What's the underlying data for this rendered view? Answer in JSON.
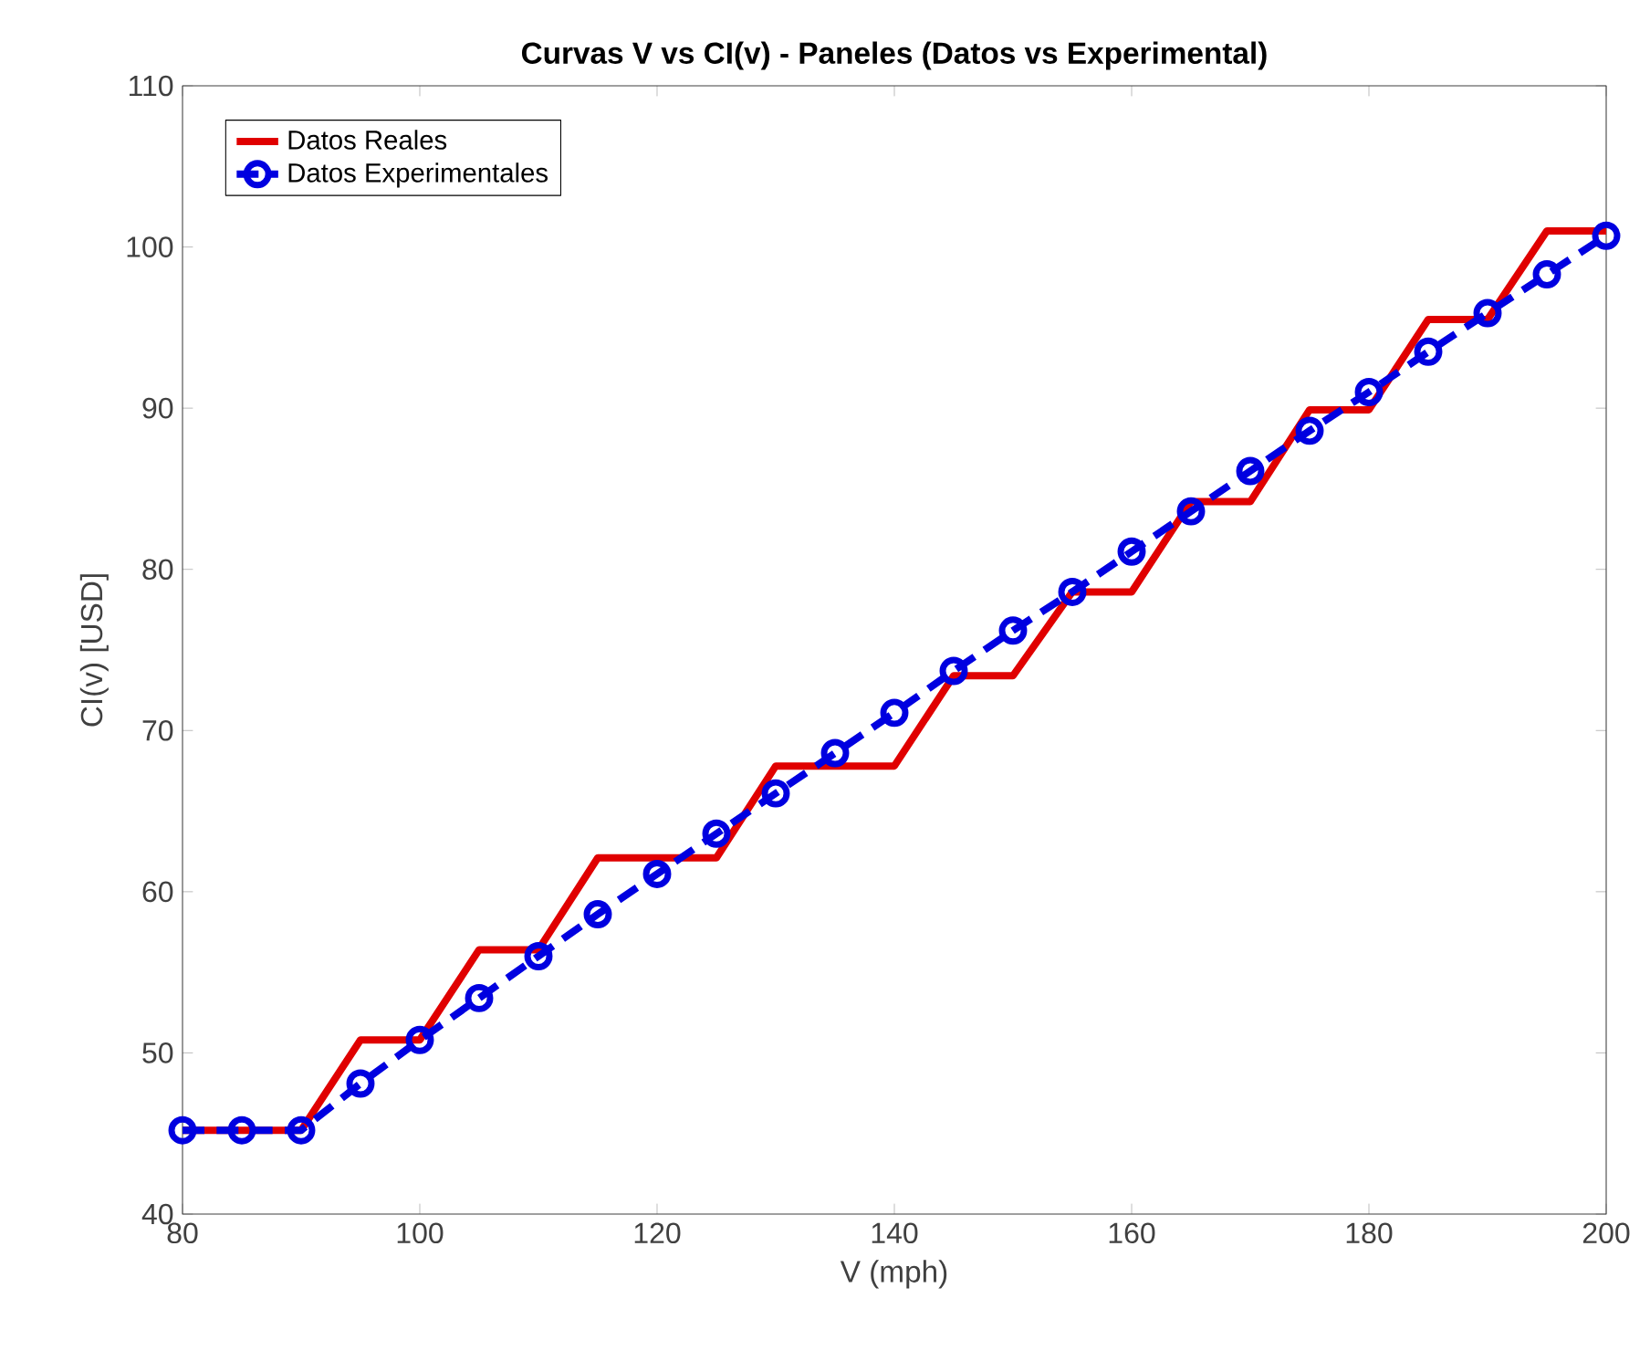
{
  "chart_data": {
    "type": "line",
    "title": "Curvas V vs CI(v) - Paneles (Datos vs Experimental)",
    "xlabel": "V (mph)",
    "ylabel": "CI(v) [USD]",
    "x": [
      80,
      85,
      90,
      95,
      100,
      105,
      110,
      115,
      120,
      125,
      130,
      135,
      140,
      145,
      150,
      155,
      160,
      165,
      170,
      175,
      180,
      185,
      190,
      195,
      200
    ],
    "series": [
      {
        "name": "Datos Reales",
        "color": "#e00000",
        "marker": "none",
        "line_style": "solid",
        "values": [
          45.2,
          45.2,
          45.2,
          50.8,
          50.8,
          56.4,
          56.4,
          62.1,
          62.1,
          62.1,
          67.8,
          67.8,
          67.8,
          73.4,
          73.4,
          78.6,
          78.6,
          84.2,
          84.2,
          89.9,
          89.9,
          95.5,
          95.5,
          101,
          101
        ]
      },
      {
        "name": "Datos Experimentales",
        "color": "#0000e0",
        "marker": "circle",
        "line_style": "dashed",
        "values": [
          45.2,
          45.2,
          45.2,
          48.1,
          50.8,
          53.4,
          56.0,
          58.6,
          61.1,
          63.6,
          66.1,
          68.6,
          71.1,
          73.7,
          76.2,
          78.6,
          81.1,
          83.6,
          86.1,
          88.6,
          91.0,
          93.5,
          95.9,
          98.3,
          100.7
        ]
      }
    ],
    "xlim": [
      80,
      200
    ],
    "ylim": [
      40,
      110
    ],
    "xticks": [
      80,
      100,
      120,
      140,
      160,
      180,
      200
    ],
    "yticks": [
      40,
      50,
      60,
      70,
      80,
      90,
      100,
      110
    ],
    "grid": false,
    "legend": "top left"
  }
}
